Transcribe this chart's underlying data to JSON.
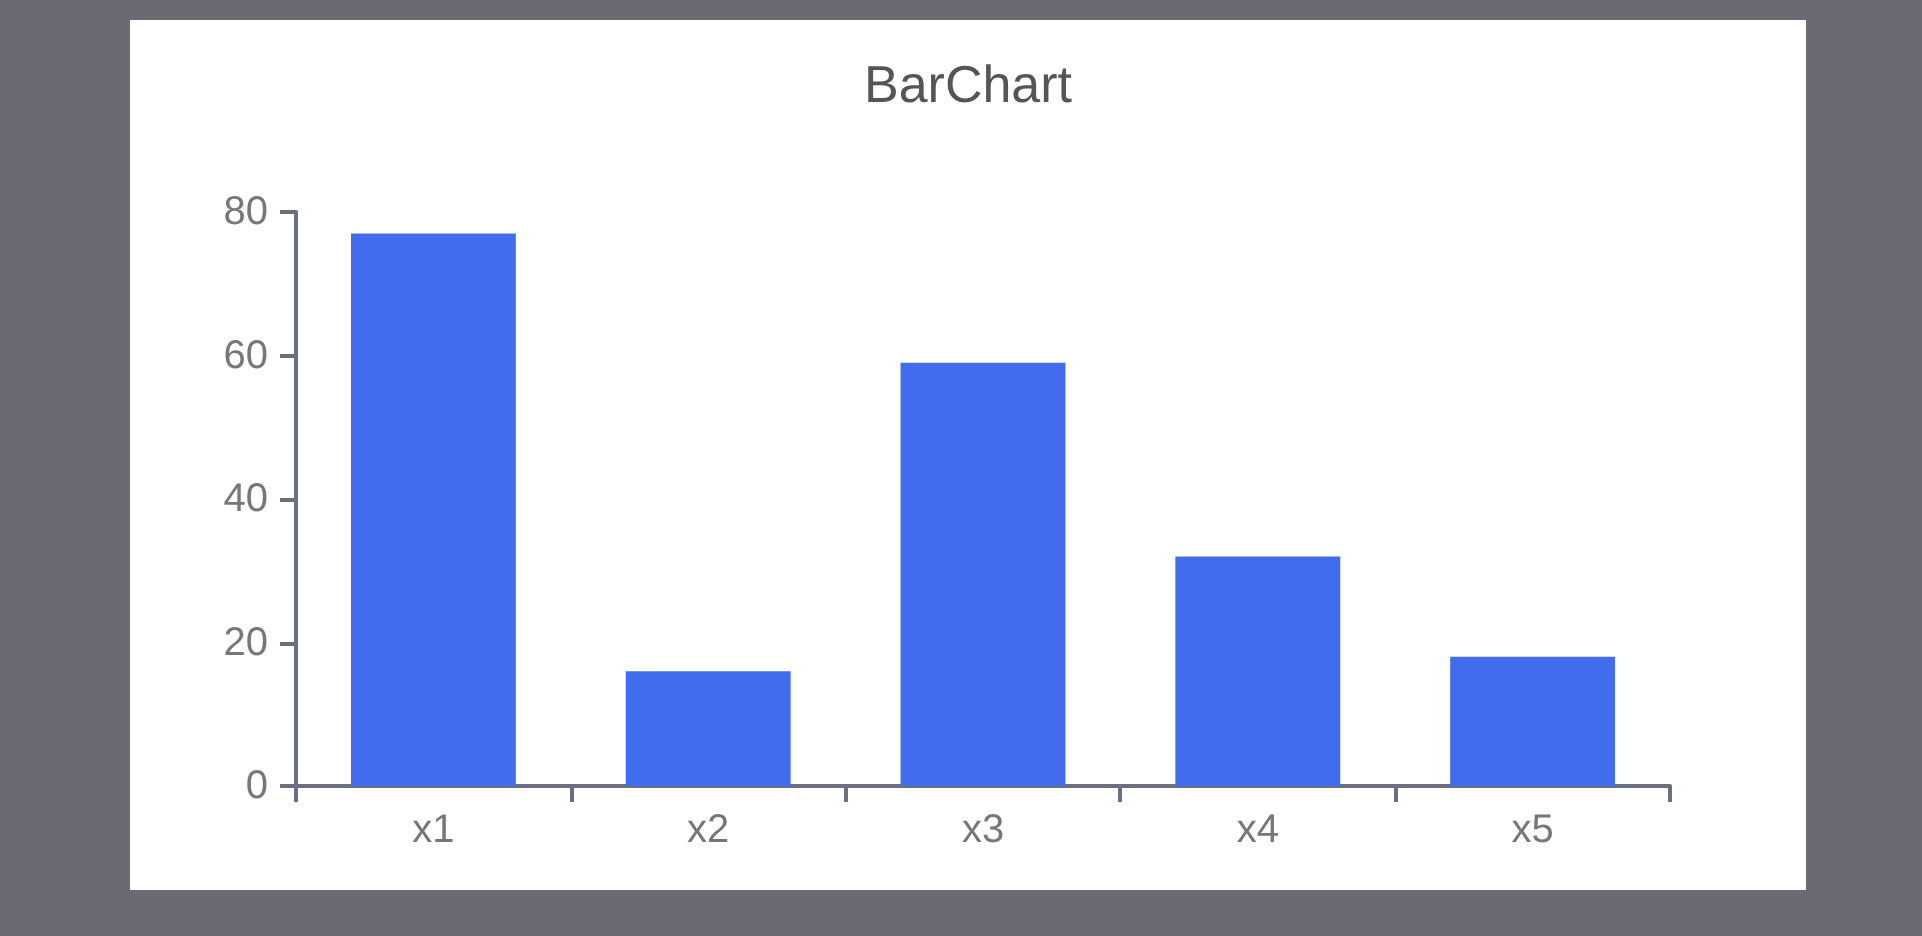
{
  "chart_data": {
    "type": "bar",
    "title": "BarChart",
    "categories": [
      "x1",
      "x2",
      "x3",
      "x4",
      "x5"
    ],
    "values": [
      77,
      16,
      59,
      32,
      18
    ],
    "color": "#416ced",
    "ylim": [
      0,
      80
    ],
    "yticks": [
      0,
      20,
      40,
      60,
      80
    ],
    "grid": false
  }
}
